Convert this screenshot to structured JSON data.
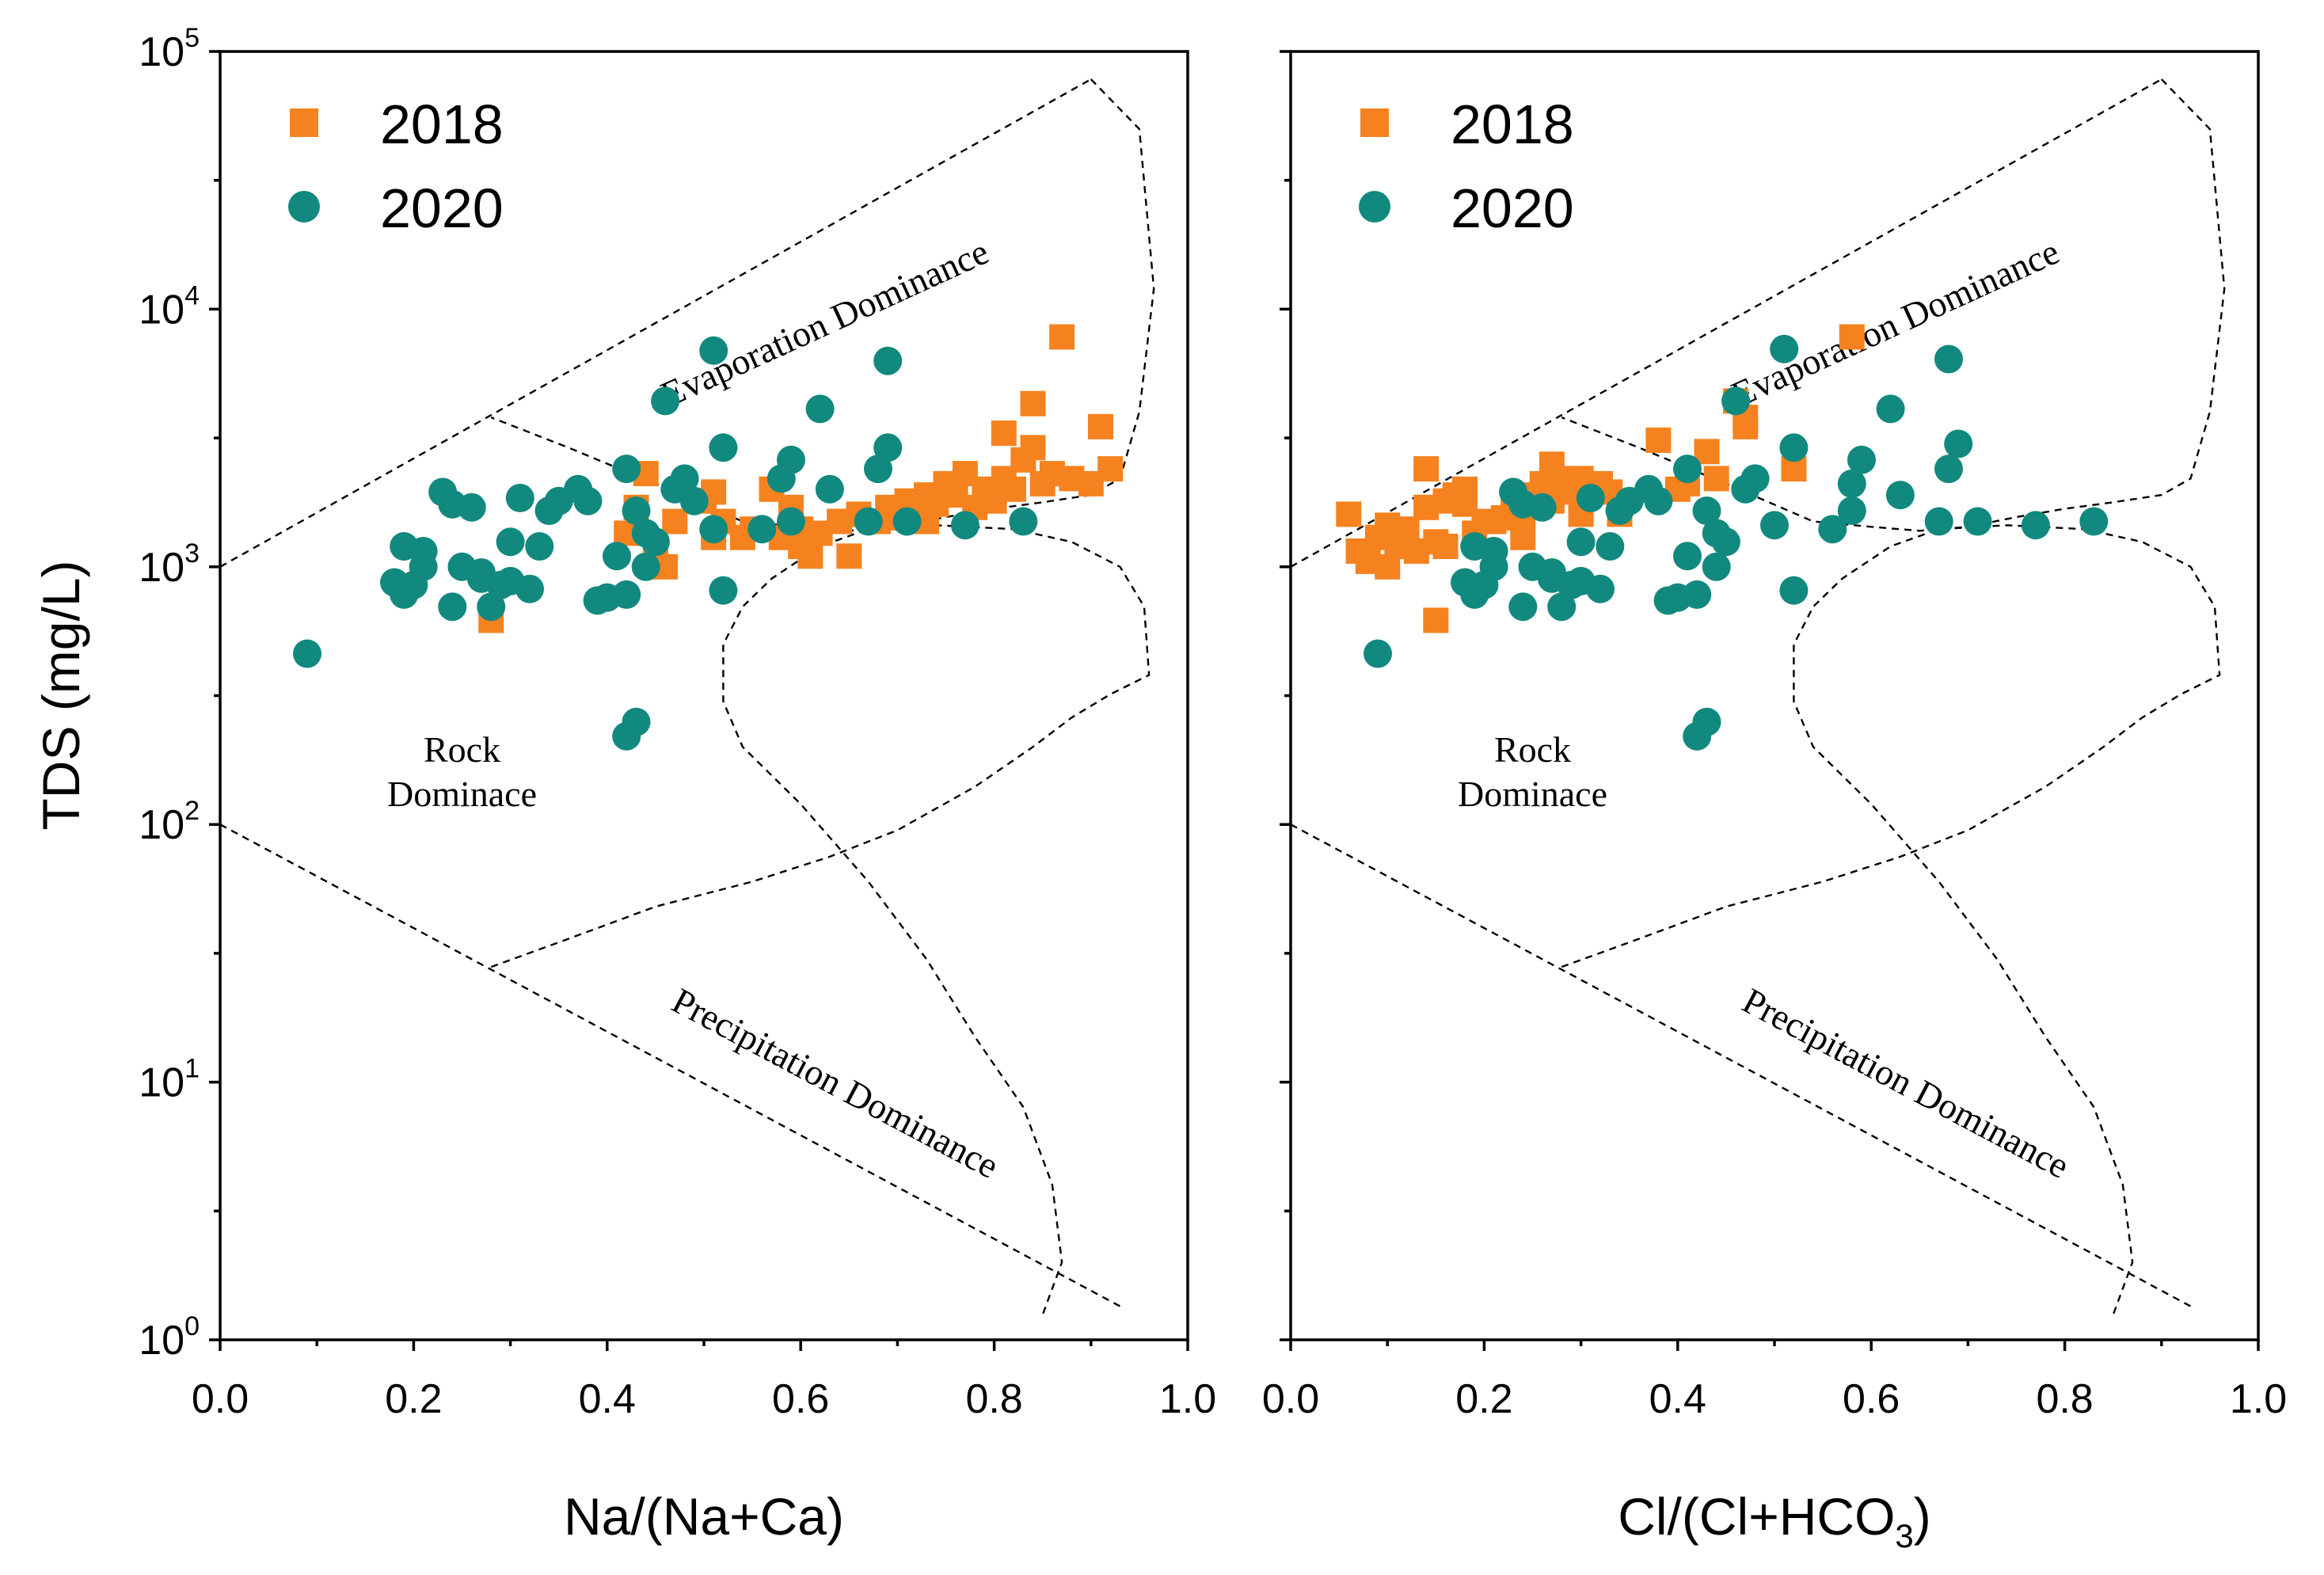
{
  "chart_data": [
    {
      "type": "scatter",
      "xlabel": "Na/(Na+Ca)",
      "ylabel": "TDS (mg/L)",
      "xlim": [
        0,
        1
      ],
      "ylim": [
        1,
        100000
      ],
      "yscale": "log",
      "x_ticks": [
        "0.0",
        "0.2",
        "0.4",
        "0.6",
        "0.8",
        "1.0"
      ],
      "y_ticks": [
        {
          "base": "10",
          "exp": "0"
        },
        {
          "base": "10",
          "exp": "1"
        },
        {
          "base": "10",
          "exp": "2"
        },
        {
          "base": "10",
          "exp": "3"
        },
        {
          "base": "10",
          "exp": "4"
        },
        {
          "base": "10",
          "exp": "5"
        }
      ],
      "legend": [
        "2018",
        "2020"
      ],
      "legend_position": "top-left",
      "annotations": {
        "evaporation": "Evaporation Dominance",
        "rock_line1": "Rock",
        "rock_line2": "Dominace",
        "precipitation": "Precipitation Dominance"
      },
      "series": [
        {
          "name": "2018",
          "marker": "square",
          "color": "#F5821F",
          "points": [
            [
              0.28,
              620
            ],
            [
              0.42,
              1350
            ],
            [
              0.43,
              1700
            ],
            [
              0.44,
              2300
            ],
            [
              0.45,
              1250
            ],
            [
              0.46,
              1000
            ],
            [
              0.47,
              1500
            ],
            [
              0.5,
              1800
            ],
            [
              0.51,
              1300
            ],
            [
              0.51,
              1950
            ],
            [
              0.52,
              1500
            ],
            [
              0.54,
              1300
            ],
            [
              0.55,
              1400
            ],
            [
              0.57,
              2000
            ],
            [
              0.58,
              1300
            ],
            [
              0.59,
              1700
            ],
            [
              0.6,
              1400
            ],
            [
              0.6,
              1200
            ],
            [
              0.61,
              1100
            ],
            [
              0.62,
              1350
            ],
            [
              0.64,
              1500
            ],
            [
              0.65,
              1100
            ],
            [
              0.66,
              1600
            ],
            [
              0.68,
              1500
            ],
            [
              0.69,
              1700
            ],
            [
              0.7,
              1550
            ],
            [
              0.71,
              1800
            ],
            [
              0.72,
              1600
            ],
            [
              0.73,
              1500
            ],
            [
              0.73,
              1900
            ],
            [
              0.74,
              1750
            ],
            [
              0.75,
              2100
            ],
            [
              0.76,
              1900
            ],
            [
              0.77,
              2300
            ],
            [
              0.78,
              1700
            ],
            [
              0.79,
              2000
            ],
            [
              0.8,
              1800
            ],
            [
              0.81,
              2200
            ],
            [
              0.81,
              3300
            ],
            [
              0.82,
              2000
            ],
            [
              0.83,
              2600
            ],
            [
              0.84,
              2900
            ],
            [
              0.84,
              4300
            ],
            [
              0.85,
              2100
            ],
            [
              0.86,
              2300
            ],
            [
              0.87,
              7800
            ],
            [
              0.88,
              2200
            ],
            [
              0.9,
              2100
            ],
            [
              0.91,
              3500
            ],
            [
              0.92,
              2400
            ]
          ]
        },
        {
          "name": "2020",
          "marker": "circle",
          "color": "#12897F",
          "points": [
            [
              0.09,
              460
            ],
            [
              0.18,
              870
            ],
            [
              0.19,
              1200
            ],
            [
              0.19,
              780
            ],
            [
              0.2,
              850
            ],
            [
              0.21,
              1000
            ],
            [
              0.21,
              1150
            ],
            [
              0.23,
              1950
            ],
            [
              0.24,
              700
            ],
            [
              0.24,
              1750
            ],
            [
              0.25,
              1000
            ],
            [
              0.26,
              1700
            ],
            [
              0.27,
              900
            ],
            [
              0.27,
              950
            ],
            [
              0.28,
              700
            ],
            [
              0.29,
              850
            ],
            [
              0.3,
              880
            ],
            [
              0.3,
              1250
            ],
            [
              0.31,
              1850
            ],
            [
              0.32,
              820
            ],
            [
              0.33,
              1200
            ],
            [
              0.34,
              1650
            ],
            [
              0.35,
              1800
            ],
            [
              0.37,
              2000
            ],
            [
              0.38,
              1800
            ],
            [
              0.39,
              740
            ],
            [
              0.4,
              760
            ],
            [
              0.41,
              1100
            ],
            [
              0.42,
              780
            ],
            [
              0.42,
              2400
            ],
            [
              0.43,
              1650
            ],
            [
              0.44,
              1350
            ],
            [
              0.44,
              1000
            ],
            [
              0.45,
              1250
            ],
            [
              0.46,
              4400
            ],
            [
              0.47,
              2000
            ],
            [
              0.48,
              2200
            ],
            [
              0.49,
              1800
            ],
            [
              0.51,
              6900
            ],
            [
              0.52,
              2900
            ],
            [
              0.52,
              810
            ],
            [
              0.51,
              1400
            ],
            [
              0.56,
              1400
            ],
            [
              0.58,
              2200
            ],
            [
              0.59,
              2600
            ],
            [
              0.59,
              1500
            ],
            [
              0.62,
              4100
            ],
            [
              0.63,
              2000
            ],
            [
              0.67,
              1500
            ],
            [
              0.68,
              2400
            ],
            [
              0.69,
              6300
            ],
            [
              0.69,
              2900
            ],
            [
              0.71,
              1500
            ],
            [
              0.77,
              1450
            ],
            [
              0.83,
              1500
            ],
            [
              0.42,
              220
            ],
            [
              0.43,
              250
            ]
          ]
        }
      ]
    },
    {
      "type": "scatter",
      "xlabel": "Cl/(Cl+HCO",
      "xlabel_sub": "3",
      "xlabel_end": ")",
      "ylabel": "TDS (mg/L)",
      "xlim": [
        0,
        1
      ],
      "ylim": [
        1,
        100000
      ],
      "yscale": "log",
      "x_ticks": [
        "0.0",
        "0.2",
        "0.4",
        "0.6",
        "0.8",
        "1.0"
      ],
      "legend": [
        "2018",
        "2020"
      ],
      "legend_position": "top-left",
      "annotations": {
        "evaporation": "Evaporation Dominance",
        "rock_line1": "Rock",
        "rock_line2": "Dominace",
        "precipitation": "Precipitation Dominance"
      },
      "series": [
        {
          "name": "2018",
          "marker": "square",
          "color": "#F5821F",
          "points": [
            [
              0.06,
              1600
            ],
            [
              0.07,
              1150
            ],
            [
              0.08,
              1050
            ],
            [
              0.09,
              1300
            ],
            [
              0.1,
              1000
            ],
            [
              0.1,
              1450
            ],
            [
              0.11,
              1200
            ],
            [
              0.12,
              1400
            ],
            [
              0.13,
              1150
            ],
            [
              0.14,
              2400
            ],
            [
              0.14,
              1700
            ],
            [
              0.15,
              1250
            ],
            [
              0.15,
              620
            ],
            [
              0.16,
              1200
            ],
            [
              0.16,
              1800
            ],
            [
              0.17,
              1900
            ],
            [
              0.18,
              1750
            ],
            [
              0.18,
              2000
            ],
            [
              0.19,
              1350
            ],
            [
              0.2,
              1500
            ],
            [
              0.21,
              1500
            ],
            [
              0.22,
              1550
            ],
            [
              0.23,
              1850
            ],
            [
              0.24,
              1600
            ],
            [
              0.24,
              1300
            ],
            [
              0.25,
              1900
            ],
            [
              0.26,
              2100
            ],
            [
              0.27,
              1800
            ],
            [
              0.27,
              2500
            ],
            [
              0.28,
              2200
            ],
            [
              0.29,
              1950
            ],
            [
              0.3,
              1600
            ],
            [
              0.3,
              2200
            ],
            [
              0.31,
              2000
            ],
            [
              0.32,
              2100
            ],
            [
              0.33,
              1950
            ],
            [
              0.34,
              1600
            ],
            [
              0.38,
              3100
            ],
            [
              0.4,
              2000
            ],
            [
              0.41,
              2100
            ],
            [
              0.43,
              2800
            ],
            [
              0.44,
              2200
            ],
            [
              0.46,
              4400
            ],
            [
              0.47,
              3500
            ],
            [
              0.47,
              3800
            ],
            [
              0.52,
              2400
            ],
            [
              0.58,
              7800
            ]
          ]
        },
        {
          "name": "2020",
          "marker": "circle",
          "color": "#12897F",
          "points": [
            [
              0.09,
              460
            ],
            [
              0.18,
              870
            ],
            [
              0.19,
              1200
            ],
            [
              0.19,
              780
            ],
            [
              0.2,
              850
            ],
            [
              0.21,
              1000
            ],
            [
              0.21,
              1150
            ],
            [
              0.23,
              1950
            ],
            [
              0.24,
              700
            ],
            [
              0.24,
              1750
            ],
            [
              0.25,
              1000
            ],
            [
              0.26,
              1700
            ],
            [
              0.27,
              900
            ],
            [
              0.27,
              950
            ],
            [
              0.28,
              700
            ],
            [
              0.29,
              850
            ],
            [
              0.3,
              880
            ],
            [
              0.3,
              1250
            ],
            [
              0.31,
              1850
            ],
            [
              0.32,
              820
            ],
            [
              0.33,
              1200
            ],
            [
              0.34,
              1650
            ],
            [
              0.35,
              1800
            ],
            [
              0.37,
              2000
            ],
            [
              0.38,
              1800
            ],
            [
              0.39,
              740
            ],
            [
              0.4,
              760
            ],
            [
              0.41,
              1100
            ],
            [
              0.42,
              780
            ],
            [
              0.41,
              2400
            ],
            [
              0.43,
              1650
            ],
            [
              0.44,
              1350
            ],
            [
              0.44,
              1000
            ],
            [
              0.45,
              1250
            ],
            [
              0.46,
              4400
            ],
            [
              0.47,
              2000
            ],
            [
              0.48,
              2200
            ],
            [
              0.5,
              1450
            ],
            [
              0.51,
              7000
            ],
            [
              0.52,
              2900
            ],
            [
              0.52,
              810
            ],
            [
              0.56,
              1400
            ],
            [
              0.58,
              1650
            ],
            [
              0.59,
              2600
            ],
            [
              0.58,
              2100
            ],
            [
              0.62,
              4100
            ],
            [
              0.63,
              1900
            ],
            [
              0.67,
              1500
            ],
            [
              0.68,
              2400
            ],
            [
              0.68,
              6400
            ],
            [
              0.69,
              3000
            ],
            [
              0.71,
              1500
            ],
            [
              0.77,
              1450
            ],
            [
              0.83,
              1500
            ],
            [
              0.42,
              220
            ],
            [
              0.43,
              250
            ]
          ]
        }
      ]
    }
  ]
}
